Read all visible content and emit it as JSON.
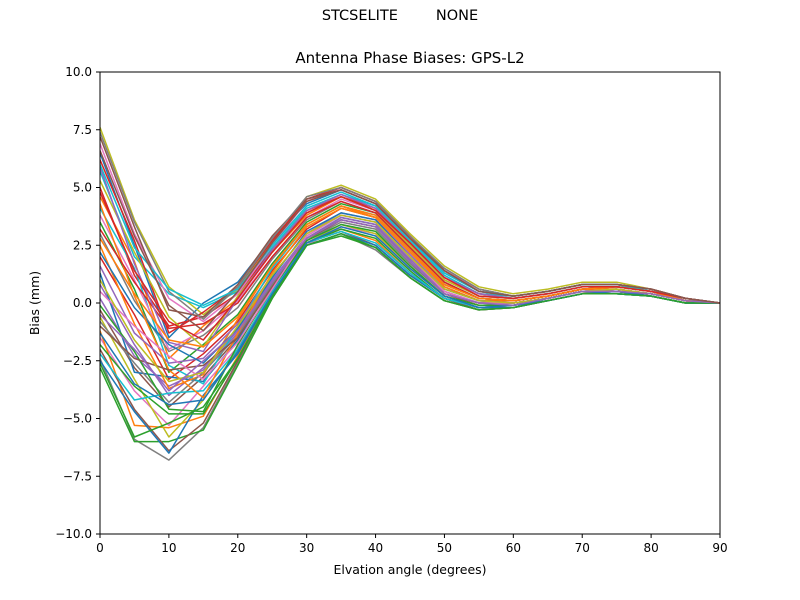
{
  "figure": {
    "suptitle_left": "STCSELITE",
    "suptitle_right": "NONE"
  },
  "chart_data": {
    "type": "line",
    "title": "Antenna Phase Biases: GPS-L2",
    "xlabel": "Elvation angle (degrees)",
    "ylabel": "Bias (mm)",
    "xlim": [
      0,
      90
    ],
    "ylim": [
      -10,
      10
    ],
    "xticks": [
      0,
      10,
      20,
      30,
      40,
      50,
      60,
      70,
      80,
      90
    ],
    "yticks": [
      -10.0,
      -7.5,
      -5.0,
      -2.5,
      0.0,
      2.5,
      5.0,
      7.5,
      10.0
    ],
    "grid": false,
    "x": [
      0,
      5,
      10,
      15,
      20,
      25,
      30,
      35,
      40,
      45,
      50,
      55,
      60,
      65,
      70,
      75,
      80,
      85,
      90
    ],
    "series": [
      {
        "color": "#1f77b4",
        "values": [
          6.5,
          2.5,
          -1.5,
          0.0,
          0.9,
          2.8,
          4.3,
          4.9,
          4.3,
          2.8,
          1.3,
          0.5,
          0.3,
          0.5,
          0.8,
          0.8,
          0.6,
          0.2,
          0.0
        ]
      },
      {
        "color": "#ff7f0e",
        "values": [
          4.6,
          1.8,
          -2.4,
          -1.0,
          0.2,
          2.2,
          3.8,
          4.6,
          4.0,
          2.6,
          1.0,
          0.3,
          0.2,
          0.4,
          0.7,
          0.7,
          0.5,
          0.2,
          0.0
        ]
      },
      {
        "color": "#2ca02c",
        "values": [
          3.5,
          0.6,
          -3.0,
          -1.8,
          -0.5,
          1.7,
          3.5,
          4.3,
          3.9,
          2.4,
          0.9,
          0.2,
          0.1,
          0.3,
          0.6,
          0.7,
          0.5,
          0.1,
          0.0
        ]
      },
      {
        "color": "#d62728",
        "values": [
          2.0,
          -0.5,
          -3.3,
          -2.2,
          -0.8,
          1.4,
          3.2,
          4.1,
          3.7,
          2.2,
          0.7,
          0.1,
          0.1,
          0.3,
          0.6,
          0.6,
          0.4,
          0.1,
          0.0
        ]
      },
      {
        "color": "#9467bd",
        "values": [
          0.8,
          -1.8,
          -4.0,
          -2.8,
          -1.2,
          1.0,
          2.9,
          3.8,
          3.5,
          2.0,
          0.5,
          0.0,
          0.0,
          0.2,
          0.5,
          0.6,
          0.4,
          0.1,
          0.0
        ]
      },
      {
        "color": "#8c564b",
        "values": [
          -0.3,
          -2.8,
          -4.5,
          -3.2,
          -1.5,
          0.7,
          2.7,
          3.6,
          3.3,
          1.8,
          0.4,
          -0.1,
          -0.1,
          0.2,
          0.5,
          0.5,
          0.4,
          0.1,
          0.0
        ]
      },
      {
        "color": "#e377c2",
        "values": [
          -1.5,
          -3.8,
          -5.3,
          -3.6,
          -1.9,
          0.4,
          2.5,
          3.3,
          3.0,
          1.5,
          0.3,
          -0.2,
          -0.1,
          0.1,
          0.4,
          0.5,
          0.3,
          0.0,
          0.0
        ]
      },
      {
        "color": "#7f7f7f",
        "values": [
          -2.4,
          -5.9,
          -6.8,
          -5.4,
          -2.6,
          0.2,
          2.5,
          3.0,
          2.3,
          1.1,
          0.1,
          -0.3,
          -0.2,
          0.1,
          0.4,
          0.4,
          0.3,
          0.0,
          0.0
        ]
      },
      {
        "color": "#bcbd22",
        "values": [
          7.6,
          3.6,
          0.7,
          -0.5,
          0.6,
          2.6,
          4.6,
          5.1,
          4.5,
          3.0,
          1.6,
          0.7,
          0.4,
          0.6,
          0.9,
          0.9,
          0.6,
          0.2,
          0.0
        ]
      },
      {
        "color": "#17becf",
        "values": [
          5.7,
          2.0,
          0.4,
          -0.2,
          0.5,
          2.4,
          4.1,
          4.7,
          4.2,
          2.7,
          1.2,
          0.4,
          0.3,
          0.5,
          0.8,
          0.8,
          0.5,
          0.2,
          0.0
        ]
      },
      {
        "color": "#1f77b4",
        "values": [
          1.3,
          -3.0,
          -3.2,
          -3.4,
          -1.6,
          0.8,
          2.8,
          3.7,
          3.4,
          1.9,
          0.5,
          0.0,
          0.0,
          0.2,
          0.5,
          0.5,
          0.4,
          0.1,
          0.0
        ]
      },
      {
        "color": "#ff7f0e",
        "values": [
          -1.2,
          -5.3,
          -5.4,
          -4.9,
          -2.3,
          0.3,
          2.6,
          3.2,
          2.7,
          1.3,
          0.2,
          -0.2,
          -0.1,
          0.1,
          0.4,
          0.5,
          0.3,
          0.0,
          0.0
        ]
      },
      {
        "color": "#2ca02c",
        "values": [
          -2.8,
          -6.0,
          -6.0,
          -5.5,
          -2.7,
          0.2,
          2.5,
          2.9,
          2.4,
          1.1,
          0.1,
          -0.3,
          -0.2,
          0.1,
          0.4,
          0.4,
          0.3,
          0.0,
          0.0
        ]
      },
      {
        "color": "#d62728",
        "values": [
          5.0,
          1.2,
          -1.0,
          -0.6,
          0.4,
          2.3,
          4.0,
          4.6,
          4.1,
          2.6,
          1.1,
          0.4,
          0.2,
          0.4,
          0.7,
          0.7,
          0.5,
          0.2,
          0.0
        ]
      },
      {
        "color": "#9467bd",
        "values": [
          0.2,
          -2.3,
          -3.6,
          -2.9,
          -1.3,
          0.9,
          2.8,
          3.7,
          3.4,
          1.9,
          0.5,
          0.0,
          0.0,
          0.2,
          0.5,
          0.6,
          0.4,
          0.1,
          0.0
        ]
      },
      {
        "color": "#8c564b",
        "values": [
          -2.0,
          -4.6,
          -6.4,
          -5.2,
          -2.5,
          0.3,
          2.6,
          3.1,
          2.5,
          1.2,
          0.2,
          -0.3,
          -0.2,
          0.1,
          0.4,
          0.4,
          0.3,
          0.0,
          0.0
        ]
      },
      {
        "color": "#e377c2",
        "values": [
          6.9,
          3.0,
          0.2,
          -0.8,
          0.4,
          2.5,
          4.4,
          5.0,
          4.4,
          2.9,
          1.4,
          0.6,
          0.3,
          0.5,
          0.8,
          0.8,
          0.6,
          0.2,
          0.0
        ]
      },
      {
        "color": "#7f7f7f",
        "values": [
          3.0,
          0.1,
          -2.1,
          -1.4,
          -0.2,
          1.9,
          3.6,
          4.4,
          3.9,
          2.4,
          0.9,
          0.2,
          0.1,
          0.3,
          0.6,
          0.7,
          0.5,
          0.1,
          0.0
        ]
      },
      {
        "color": "#bcbd22",
        "values": [
          -0.6,
          -3.3,
          -5.8,
          -4.2,
          -2.0,
          0.5,
          2.6,
          3.4,
          3.0,
          1.6,
          0.3,
          -0.1,
          -0.1,
          0.2,
          0.5,
          0.5,
          0.3,
          0.0,
          0.0
        ]
      },
      {
        "color": "#17becf",
        "values": [
          4.1,
          1.5,
          -2.7,
          -3.5,
          -1.0,
          1.5,
          3.4,
          4.2,
          3.8,
          2.3,
          0.8,
          0.2,
          0.1,
          0.3,
          0.6,
          0.7,
          0.5,
          0.1,
          0.0
        ]
      },
      {
        "color": "#1f77b4",
        "values": [
          -2.5,
          -4.7,
          -6.5,
          -4.0,
          -2.2,
          0.4,
          2.5,
          3.0,
          2.5,
          1.2,
          0.2,
          -0.2,
          -0.2,
          0.1,
          0.4,
          0.4,
          0.3,
          0.0,
          0.0
        ]
      },
      {
        "color": "#ff7f0e",
        "values": [
          2.5,
          -0.9,
          -3.7,
          -3.1,
          -0.7,
          1.6,
          3.4,
          4.2,
          3.7,
          2.2,
          0.7,
          0.1,
          0.1,
          0.3,
          0.6,
          0.6,
          0.4,
          0.1,
          0.0
        ]
      },
      {
        "color": "#2ca02c",
        "values": [
          -1.8,
          -3.6,
          -4.8,
          -4.8,
          -2.4,
          0.3,
          2.6,
          3.2,
          2.8,
          1.4,
          0.2,
          -0.2,
          -0.1,
          0.1,
          0.4,
          0.5,
          0.3,
          0.0,
          0.0
        ]
      },
      {
        "color": "#d62728",
        "values": [
          6.2,
          2.7,
          -1.3,
          -0.4,
          0.7,
          2.7,
          4.5,
          5.0,
          4.4,
          2.9,
          1.4,
          0.5,
          0.3,
          0.5,
          0.8,
          0.8,
          0.6,
          0.2,
          0.0
        ]
      },
      {
        "color": "#9467bd",
        "values": [
          1.6,
          -1.3,
          -2.6,
          -2.4,
          -0.9,
          1.2,
          3.0,
          3.9,
          3.6,
          2.1,
          0.6,
          0.1,
          0.0,
          0.2,
          0.5,
          0.6,
          0.4,
          0.1,
          0.0
        ]
      },
      {
        "color": "#8c564b",
        "values": [
          7.2,
          3.3,
          -0.3,
          -0.6,
          0.8,
          2.9,
          4.5,
          4.9,
          4.3,
          2.8,
          1.5,
          0.6,
          0.3,
          0.5,
          0.8,
          0.8,
          0.6,
          0.2,
          0.0
        ]
      },
      {
        "color": "#e377c2",
        "values": [
          3.8,
          1.0,
          -2.0,
          -1.2,
          0.1,
          2.0,
          3.7,
          4.5,
          4.0,
          2.5,
          1.0,
          0.3,
          0.2,
          0.4,
          0.7,
          0.7,
          0.5,
          0.1,
          0.0
        ]
      },
      {
        "color": "#7f7f7f",
        "values": [
          -0.8,
          -2.6,
          -4.3,
          -3.0,
          -1.4,
          0.8,
          2.7,
          3.5,
          3.2,
          1.7,
          0.4,
          0.0,
          -0.1,
          0.2,
          0.5,
          0.5,
          0.4,
          0.1,
          0.0
        ]
      },
      {
        "color": "#bcbd22",
        "values": [
          5.3,
          2.2,
          -0.6,
          -1.9,
          0.3,
          2.2,
          3.9,
          4.6,
          4.0,
          2.5,
          1.0,
          0.3,
          0.2,
          0.4,
          0.7,
          0.7,
          0.5,
          0.2,
          0.0
        ]
      },
      {
        "color": "#17becf",
        "values": [
          -2.2,
          -4.2,
          -3.9,
          -3.8,
          -2.0,
          0.5,
          2.6,
          3.1,
          2.6,
          1.3,
          0.2,
          -0.2,
          -0.1,
          0.1,
          0.4,
          0.4,
          0.3,
          0.0,
          0.0
        ]
      },
      {
        "color": "#1f77b4",
        "values": [
          2.2,
          -0.2,
          -1.8,
          -2.6,
          -1.1,
          1.1,
          3.1,
          3.9,
          3.6,
          2.0,
          0.6,
          0.1,
          0.0,
          0.2,
          0.5,
          0.6,
          0.4,
          0.1,
          0.0
        ]
      },
      {
        "color": "#ff7f0e",
        "values": [
          4.3,
          0.3,
          -2.9,
          -4.1,
          -1.3,
          1.3,
          3.3,
          4.1,
          3.7,
          2.2,
          0.8,
          0.2,
          0.1,
          0.3,
          0.6,
          0.6,
          0.4,
          0.1,
          0.0
        ]
      },
      {
        "color": "#2ca02c",
        "values": [
          -0.1,
          -2.1,
          -4.6,
          -4.7,
          -1.8,
          0.6,
          2.7,
          3.4,
          3.1,
          1.6,
          0.3,
          -0.1,
          -0.1,
          0.2,
          0.5,
          0.5,
          0.3,
          0.0,
          0.0
        ]
      },
      {
        "color": "#d62728",
        "values": [
          3.2,
          0.9,
          -1.1,
          -0.9,
          0.0,
          2.0,
          3.7,
          4.4,
          3.9,
          2.4,
          0.9,
          0.2,
          0.1,
          0.3,
          0.6,
          0.7,
          0.5,
          0.1,
          0.0
        ]
      },
      {
        "color": "#9467bd",
        "values": [
          5.9,
          1.7,
          -1.7,
          -2.1,
          0.2,
          2.3,
          4.0,
          4.7,
          4.1,
          2.6,
          1.1,
          0.4,
          0.2,
          0.4,
          0.7,
          0.7,
          0.5,
          0.2,
          0.0
        ]
      },
      {
        "color": "#8c564b",
        "values": [
          -1.0,
          -2.4,
          -2.9,
          -2.7,
          -1.5,
          0.7,
          2.8,
          3.6,
          3.3,
          1.8,
          0.4,
          0.0,
          0.0,
          0.2,
          0.5,
          0.5,
          0.4,
          0.1,
          0.0
        ]
      },
      {
        "color": "#e377c2",
        "values": [
          0.5,
          -1.0,
          -2.3,
          -3.3,
          -1.7,
          0.6,
          2.9,
          3.8,
          3.5,
          2.0,
          0.5,
          0.0,
          0.0,
          0.2,
          0.5,
          0.6,
          0.4,
          0.1,
          0.0
        ]
      },
      {
        "color": "#7f7f7f",
        "values": [
          7.4,
          3.5,
          0.5,
          -0.7,
          0.7,
          2.8,
          4.6,
          5.0,
          4.4,
          2.9,
          1.5,
          0.6,
          0.3,
          0.5,
          0.8,
          0.8,
          0.6,
          0.2,
          0.0
        ]
      },
      {
        "color": "#bcbd22",
        "values": [
          1.0,
          -1.6,
          -3.4,
          -3.0,
          -1.0,
          1.2,
          3.0,
          3.8,
          3.5,
          2.0,
          0.6,
          0.1,
          0.0,
          0.2,
          0.5,
          0.6,
          0.4,
          0.1,
          0.0
        ]
      },
      {
        "color": "#17becf",
        "values": [
          6.0,
          2.4,
          0.6,
          -0.1,
          0.6,
          2.5,
          4.2,
          4.8,
          4.2,
          2.7,
          1.3,
          0.5,
          0.3,
          0.5,
          0.8,
          0.8,
          0.5,
          0.2,
          0.0
        ]
      },
      {
        "color": "#1f77b4",
        "values": [
          -1.3,
          -3.5,
          -4.4,
          -4.2,
          -2.1,
          0.4,
          2.6,
          3.3,
          2.9,
          1.5,
          0.3,
          -0.2,
          -0.1,
          0.1,
          0.4,
          0.5,
          0.3,
          0.0,
          0.0
        ]
      },
      {
        "color": "#ff7f0e",
        "values": [
          2.8,
          0.4,
          -1.6,
          -1.9,
          -0.6,
          1.6,
          3.4,
          4.2,
          3.8,
          2.3,
          0.8,
          0.2,
          0.1,
          0.3,
          0.6,
          0.7,
          0.5,
          0.1,
          0.0
        ]
      },
      {
        "color": "#2ca02c",
        "values": [
          -2.6,
          -5.8,
          -5.2,
          -4.5,
          -2.4,
          0.2,
          2.5,
          3.0,
          2.4,
          1.1,
          0.1,
          -0.3,
          -0.2,
          0.1,
          0.4,
          0.4,
          0.3,
          0.0,
          0.0
        ]
      },
      {
        "color": "#d62728",
        "values": [
          4.8,
          1.4,
          -0.8,
          -1.6,
          0.2,
          2.2,
          3.9,
          4.6,
          4.0,
          2.6,
          1.1,
          0.3,
          0.2,
          0.4,
          0.7,
          0.7,
          0.5,
          0.2,
          0.0
        ]
      },
      {
        "color": "#9467bd",
        "values": [
          -0.5,
          -2.0,
          -3.8,
          -2.5,
          -1.2,
          0.9,
          2.8,
          3.6,
          3.3,
          1.8,
          0.4,
          0.0,
          -0.1,
          0.2,
          0.5,
          0.5,
          0.4,
          0.1,
          0.0
        ]
      },
      {
        "color": "#8c564b",
        "values": [
          6.6,
          2.9,
          -0.1,
          -1.2,
          0.5,
          2.6,
          4.4,
          4.9,
          4.3,
          2.8,
          1.4,
          0.5,
          0.3,
          0.5,
          0.8,
          0.8,
          0.6,
          0.2,
          0.0
        ]
      }
    ]
  }
}
